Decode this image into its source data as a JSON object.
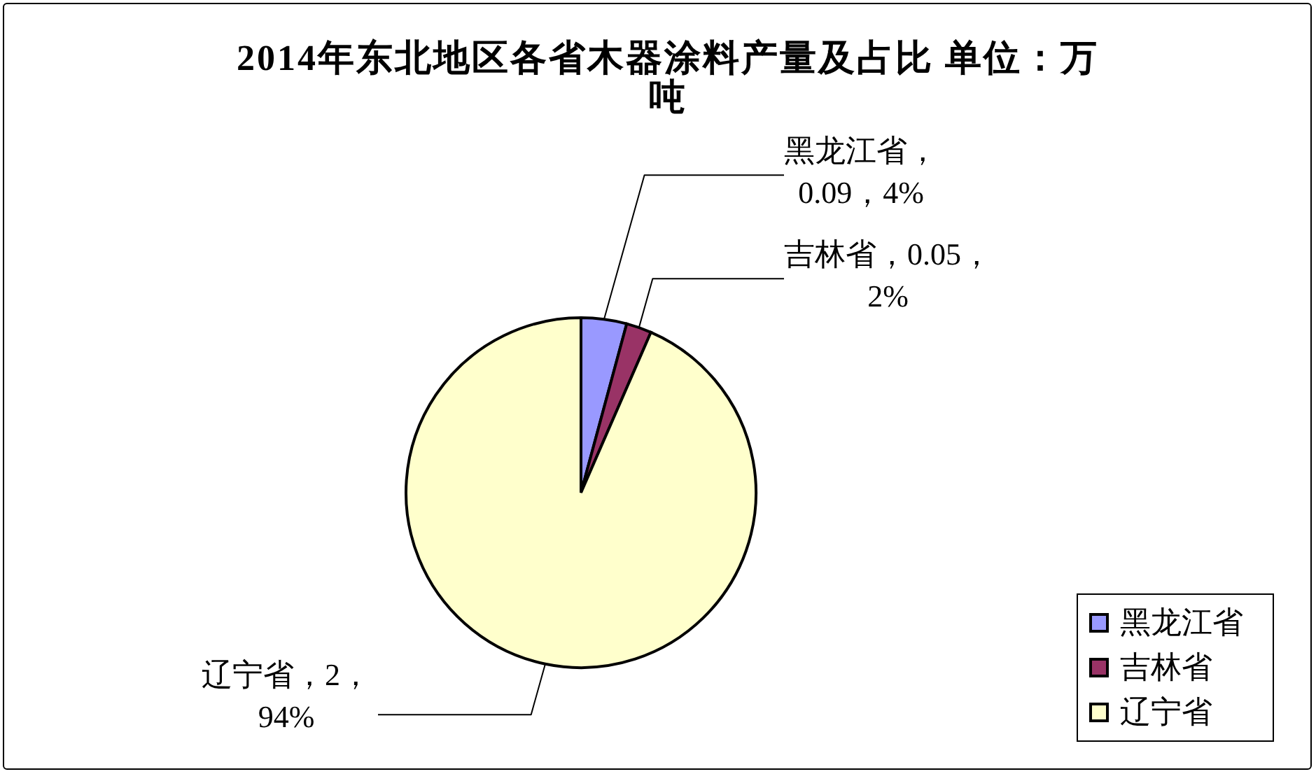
{
  "chart_data": {
    "type": "pie",
    "title": "2014年东北地区各省木器涂料产量及占比 单位：万吨",
    "categories": [
      "黑龙江省",
      "吉林省",
      "辽宁省"
    ],
    "values": [
      0.09,
      0.05,
      2
    ],
    "colors": [
      "#9999ff",
      "#993366",
      "#ffffcc"
    ],
    "value_labels": [
      "黑龙江省，0.09，4%",
      "吉林省，0.05，2%",
      "辽宁省，2，94%"
    ],
    "legend": "bottom right"
  }
}
